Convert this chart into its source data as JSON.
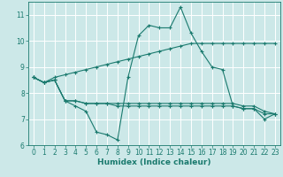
{
  "xlabel": "Humidex (Indice chaleur)",
  "bg_color": "#cce8e8",
  "line_color": "#1a7a6e",
  "grid_color": "#ffffff",
  "xlim": [
    -0.5,
    23.5
  ],
  "ylim": [
    6,
    11.5
  ],
  "yticks": [
    6,
    7,
    8,
    9,
    10,
    11
  ],
  "xticks": [
    0,
    1,
    2,
    3,
    4,
    5,
    6,
    7,
    8,
    9,
    10,
    11,
    12,
    13,
    14,
    15,
    16,
    17,
    18,
    19,
    20,
    21,
    22,
    23
  ],
  "series": [
    [
      8.6,
      8.4,
      8.5,
      7.7,
      7.5,
      7.3,
      6.5,
      6.4,
      6.2,
      8.6,
      10.2,
      10.6,
      10.5,
      10.5,
      11.3,
      10.3,
      9.6,
      9.0,
      8.9,
      7.5,
      7.4,
      7.4,
      7.0,
      7.2
    ],
    [
      8.6,
      8.4,
      8.5,
      7.7,
      7.7,
      7.6,
      7.6,
      7.6,
      7.6,
      7.6,
      7.6,
      7.6,
      7.6,
      7.6,
      7.6,
      7.6,
      7.6,
      7.6,
      7.6,
      7.6,
      7.5,
      7.5,
      7.3,
      7.2
    ],
    [
      8.6,
      8.4,
      8.5,
      7.7,
      7.7,
      7.6,
      7.6,
      7.6,
      7.5,
      7.5,
      7.5,
      7.5,
      7.5,
      7.5,
      7.5,
      7.5,
      7.5,
      7.5,
      7.5,
      7.5,
      7.4,
      7.4,
      7.2,
      7.2
    ],
    [
      8.6,
      8.4,
      8.6,
      8.7,
      8.8,
      8.9,
      9.0,
      9.1,
      9.2,
      9.3,
      9.4,
      9.5,
      9.6,
      9.7,
      9.8,
      9.9,
      9.9,
      9.9,
      9.9,
      9.9,
      9.9,
      9.9,
      9.9,
      9.9
    ]
  ],
  "xlabel_fontsize": 6.5,
  "tick_fontsize": 5.5
}
